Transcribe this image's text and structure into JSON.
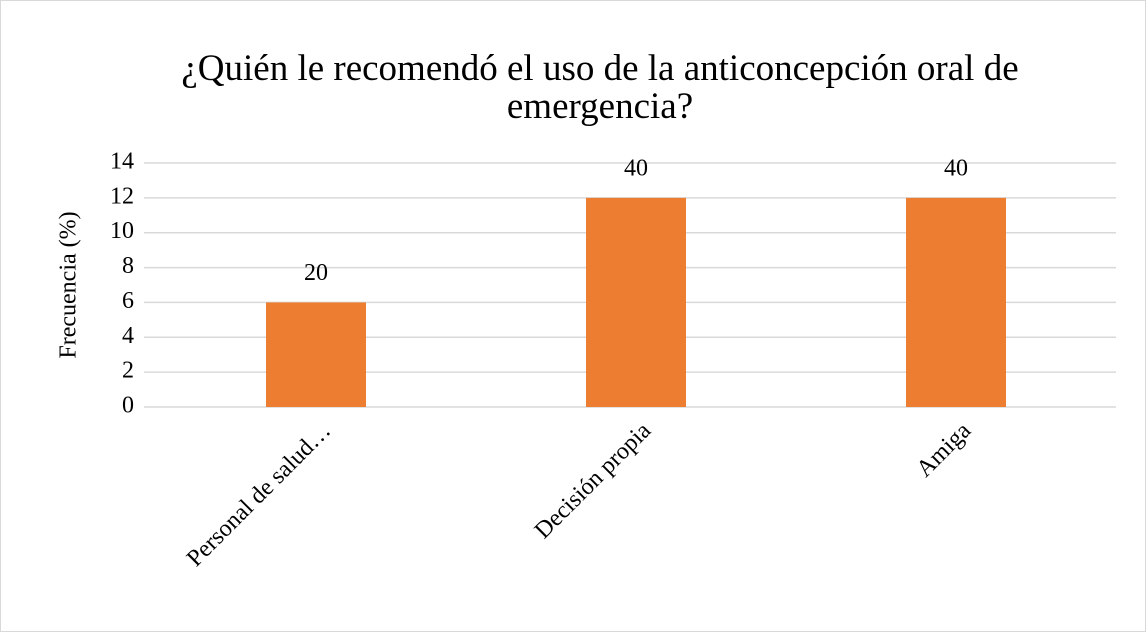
{
  "chart_data": {
    "type": "bar",
    "title": "¿Quién le recomendó el uso de la anticoncepción oral de emergencia?",
    "y_label": "Frecuencia (%)",
    "categories": [
      "Personal de salud…",
      "Decisión propia",
      "Amiga"
    ],
    "values": [
      6,
      12,
      12
    ],
    "labels": [
      20,
      40,
      40
    ],
    "color": "#ed7d31",
    "ylim": [
      0,
      14
    ],
    "yticks": [
      0,
      2,
      4,
      6,
      8,
      10,
      12,
      14
    ],
    "grid": true
  }
}
